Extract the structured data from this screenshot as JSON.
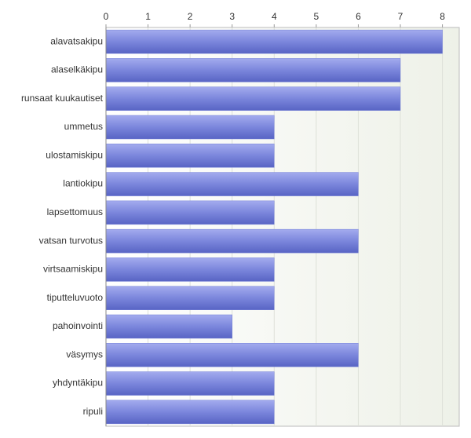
{
  "chart_data": {
    "type": "bar",
    "orientation": "horizontal",
    "categories": [
      "alavatsakipu",
      "alaselkäkipu",
      "runsaat kuukautiset",
      "ummetus",
      "ulostamiskipu",
      "lantiokipu",
      "lapsettomuus",
      "vatsan turvotus",
      "virtsaamiskipu",
      "tiputteluvuoto",
      "pahoinvointi",
      "väsymys",
      "yhdyntäkipu",
      "ripuli"
    ],
    "values": [
      8,
      7,
      7,
      4,
      4,
      6,
      4,
      6,
      4,
      4,
      3,
      6,
      4,
      4
    ],
    "color": "#7480d8",
    "xlim": [
      0,
      8.4
    ],
    "xticks": [
      0,
      1,
      2,
      3,
      4,
      5,
      6,
      7,
      8
    ],
    "grid": true
  }
}
